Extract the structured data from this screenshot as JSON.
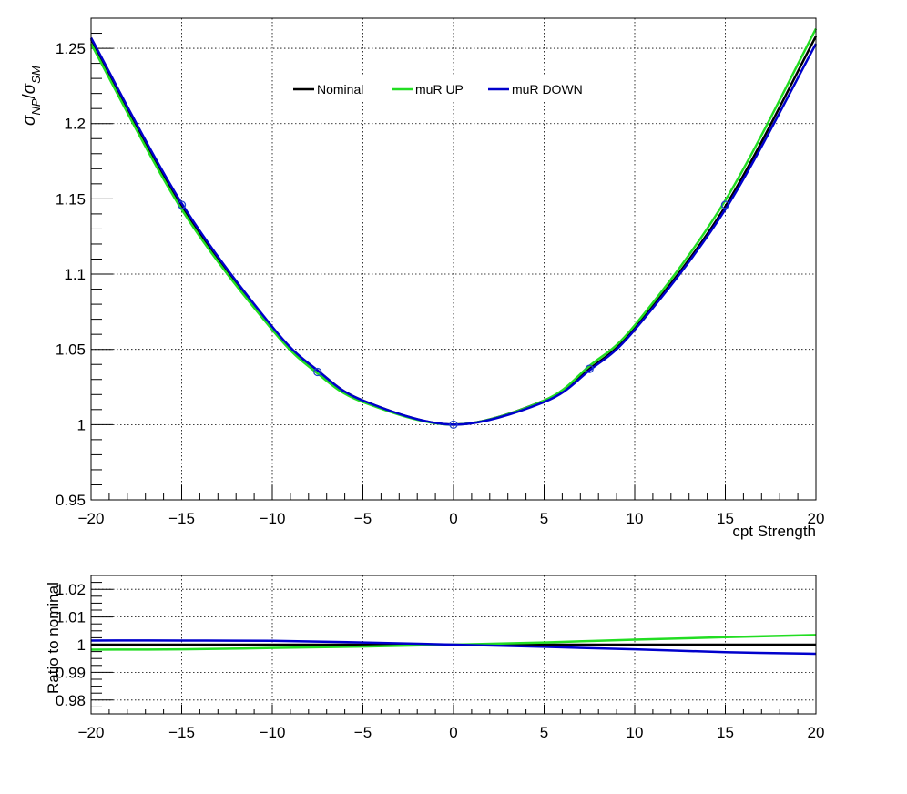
{
  "chart_data": [
    {
      "type": "line",
      "title": "",
      "xlabel": "cpt Strength",
      "ylabel": "σ_NP/σ_SM",
      "ylabel_parts": {
        "s1": "σ",
        "sub1": "NP",
        "slash": "/",
        "s2": "σ",
        "sub2": "SM"
      },
      "xlim": [
        -20,
        20
      ],
      "ylim": [
        0.95,
        1.27
      ],
      "grid": true,
      "legend_position": "top-center",
      "x_ticks": [
        -20,
        -15,
        -10,
        -5,
        0,
        5,
        10,
        15,
        20
      ],
      "x_tick_labels": [
        "−20",
        "−15",
        "−10",
        "−5",
        "0",
        "5",
        "10",
        "15",
        "20"
      ],
      "y_ticks": [
        0.95,
        1,
        1.05,
        1.1,
        1.15,
        1.2,
        1.25
      ],
      "y_tick_labels": [
        "0.95",
        "1",
        "1.05",
        "1.1",
        "1.15",
        "1.2",
        "1.25"
      ],
      "series": [
        {
          "name": "Nominal",
          "color": "#000000",
          "x": [
            -20,
            -15,
            -10,
            -7.5,
            -5,
            0,
            5,
            7.5,
            10,
            15,
            20
          ],
          "y": [
            1.256,
            1.145,
            1.064,
            1.036,
            1.016,
            1.0,
            1.016,
            1.037,
            1.064,
            1.145,
            1.258
          ]
        },
        {
          "name": "muR UP",
          "color": "#22dd22",
          "x": [
            -20,
            -15,
            -10,
            -7.5,
            -5,
            0,
            5,
            7.5,
            10,
            15,
            20
          ],
          "y": [
            1.253,
            1.143,
            1.063,
            1.034,
            1.015,
            1.0,
            1.016,
            1.039,
            1.066,
            1.149,
            1.263
          ]
        },
        {
          "name": "muR DOWN",
          "color": "#0000cc",
          "x": [
            -20,
            -15,
            -10,
            -7.5,
            -5,
            0,
            5,
            7.5,
            10,
            15,
            20
          ],
          "y": [
            1.257,
            1.147,
            1.065,
            1.036,
            1.016,
            1.0,
            1.015,
            1.036,
            1.063,
            1.143,
            1.253
          ]
        }
      ],
      "markers": {
        "color": "#2244cc",
        "x": [
          -15,
          -7.5,
          0,
          7.5,
          15
        ],
        "y": [
          1.146,
          1.035,
          1.0,
          1.037,
          1.146
        ]
      }
    },
    {
      "type": "line",
      "title": "",
      "xlabel": "",
      "ylabel": "Ratio to nominal",
      "xlim": [
        -20,
        20
      ],
      "ylim": [
        0.975,
        1.025
      ],
      "grid": true,
      "x_ticks": [
        -20,
        -15,
        -10,
        -5,
        0,
        5,
        10,
        15,
        20
      ],
      "x_tick_labels": [
        "−20",
        "−15",
        "−10",
        "−5",
        "0",
        "5",
        "10",
        "15",
        "20"
      ],
      "y_ticks": [
        0.98,
        0.99,
        1,
        1.01,
        1.02
      ],
      "y_tick_labels": [
        "0.98",
        "0.99",
        "1",
        "1.01",
        "1.02"
      ],
      "series": [
        {
          "name": "Nominal",
          "color": "#000000",
          "x": [
            -20,
            -10,
            0,
            10,
            20
          ],
          "y": [
            1.0,
            1.0,
            1.0,
            1.0,
            1.0
          ]
        },
        {
          "name": "muR UP",
          "color": "#22dd22",
          "x": [
            -20,
            -15,
            -10,
            -5,
            0,
            5,
            10,
            15,
            20
          ],
          "y": [
            0.9982,
            0.9983,
            0.9988,
            0.9993,
            1.0,
            1.0008,
            1.0018,
            1.0027,
            1.0035
          ]
        },
        {
          "name": "muR DOWN",
          "color": "#0000cc",
          "x": [
            -20,
            -15,
            -10,
            -5,
            0,
            5,
            10,
            15,
            20
          ],
          "y": [
            1.0015,
            1.0015,
            1.0014,
            1.0008,
            1.0,
            0.9992,
            0.9983,
            0.9973,
            0.9967
          ]
        }
      ]
    }
  ]
}
